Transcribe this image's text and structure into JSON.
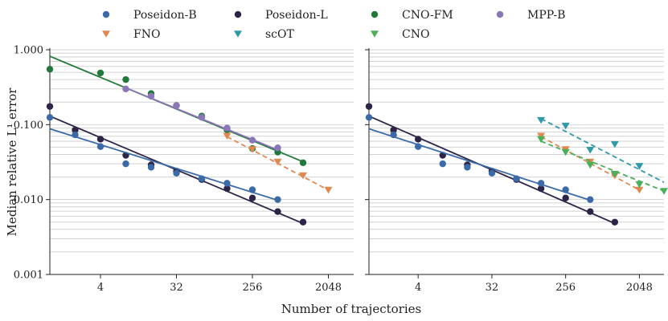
{
  "chart_data": {
    "type": "scatter",
    "xlabel": "Number of trajectories",
    "ylabel": "Median relative L¹ error",
    "xscale": "log2",
    "yscale": "log10",
    "xlim": [
      1,
      4096
    ],
    "ylim": [
      0.001,
      1.0
    ],
    "x_ticks": [
      4,
      32,
      256,
      2048
    ],
    "x_tick_labels": [
      "4",
      "32",
      "256",
      "2048"
    ],
    "y_ticks": [
      0.001,
      0.01,
      0.1,
      1.0
    ],
    "y_tick_labels": [
      "0.001",
      "0.010",
      "0.100",
      "1.000"
    ],
    "legend_position": "top",
    "legend": [
      {
        "name": "Poseidon-B",
        "marker": "circle",
        "color": "#3b6aa8"
      },
      {
        "name": "Poseidon-L",
        "marker": "circle",
        "color": "#2d2448"
      },
      {
        "name": "CNO-FM",
        "marker": "circle",
        "color": "#1f7a3a"
      },
      {
        "name": "MPP-B",
        "marker": "circle",
        "color": "#8a76b8"
      },
      {
        "name": "FNO",
        "marker": "triangle-down",
        "color": "#e08850"
      },
      {
        "name": "scOT",
        "marker": "triangle-down",
        "color": "#2f9aa8"
      },
      {
        "name": "CNO",
        "marker": "triangle-down",
        "color": "#4ab05a"
      }
    ],
    "panels": [
      {
        "series": [
          {
            "name": "CNO-FM",
            "x": [
              1,
              4,
              8,
              16,
              32,
              64,
              128,
              256,
              512,
              1024
            ],
            "y": [
              0.55,
              0.49,
              0.4,
              0.26,
              0.18,
              0.13,
              0.085,
              0.048,
              0.043,
              0.031
            ],
            "fit": [
              1,
              1024
            ],
            "fit_y": [
              0.82,
              0.032
            ],
            "fit_style": "solid"
          },
          {
            "name": "MPP-B",
            "x": [
              8,
              16,
              32,
              64,
              128,
              256,
              512
            ],
            "y": [
              0.3,
              0.24,
              0.18,
              0.125,
              0.09,
              0.062,
              0.049
            ],
            "fit": [
              8,
              512
            ],
            "fit_y": [
              0.31,
              0.046
            ],
            "fit_style": "solid"
          },
          {
            "name": "Poseidon-L",
            "x": [
              1,
              2,
              4,
              8,
              16,
              32,
              64,
              128,
              256,
              512,
              1024
            ],
            "y": [
              0.175,
              0.085,
              0.064,
              0.039,
              0.029,
              0.024,
              0.0185,
              0.014,
              0.0105,
              0.0069,
              0.005
            ],
            "fit": [
              1,
              1024
            ],
            "fit_y": [
              0.13,
              0.0048
            ],
            "fit_style": "solid"
          },
          {
            "name": "Poseidon-B",
            "x": [
              1,
              2,
              4,
              8,
              16,
              32,
              64,
              128,
              256,
              512
            ],
            "y": [
              0.125,
              0.073,
              0.051,
              0.03,
              0.027,
              0.0225,
              0.019,
              0.0165,
              0.0135,
              0.01
            ],
            "fit": [
              1,
              512
            ],
            "fit_y": [
              0.088,
              0.0098
            ],
            "fit_style": "solid"
          },
          {
            "name": "FNO",
            "x": [
              128,
              256,
              512,
              1024,
              2048
            ],
            "y": [
              0.071,
              0.047,
              0.032,
              0.021,
              0.0135
            ],
            "fit": [
              128,
              2048
            ],
            "fit_y": [
              0.069,
              0.0134
            ],
            "fit_style": "dashed"
          }
        ]
      },
      {
        "series": [
          {
            "name": "Poseidon-L",
            "x": [
              1,
              2,
              4,
              8,
              16,
              32,
              64,
              128,
              256,
              512,
              1024
            ],
            "y": [
              0.175,
              0.085,
              0.064,
              0.039,
              0.029,
              0.024,
              0.0185,
              0.014,
              0.0105,
              0.0069,
              0.005
            ],
            "fit": [
              1,
              1024
            ],
            "fit_y": [
              0.13,
              0.0048
            ],
            "fit_style": "solid"
          },
          {
            "name": "Poseidon-B",
            "x": [
              1,
              2,
              4,
              8,
              16,
              32,
              64,
              128,
              256,
              512
            ],
            "y": [
              0.125,
              0.073,
              0.051,
              0.03,
              0.027,
              0.0225,
              0.019,
              0.0165,
              0.0135,
              0.01
            ],
            "fit": [
              1,
              512
            ],
            "fit_y": [
              0.088,
              0.0098
            ],
            "fit_style": "solid"
          },
          {
            "name": "scOT",
            "x": [
              128,
              256,
              512,
              1024,
              2048
            ],
            "y": [
              0.115,
              0.097,
              0.046,
              0.055,
              0.028
            ],
            "fit": [
              128,
              4096
            ],
            "fit_y": [
              0.12,
              0.017
            ],
            "fit_style": "dashed"
          },
          {
            "name": "FNO",
            "x": [
              128,
              256,
              512,
              1024,
              2048
            ],
            "y": [
              0.071,
              0.047,
              0.032,
              0.021,
              0.0135
            ],
            "fit": [
              128,
              2048
            ],
            "fit_y": [
              0.069,
              0.0134
            ],
            "fit_style": "dashed"
          },
          {
            "name": "CNO",
            "x": [
              128,
              256,
              512,
              1024,
              2048,
              4096
            ],
            "y": [
              0.064,
              0.043,
              0.029,
              0.022,
              0.016,
              0.013
            ],
            "fit": [
              128,
              4096
            ],
            "fit_y": [
              0.06,
              0.013
            ],
            "fit_style": "dashed"
          }
        ]
      }
    ]
  }
}
